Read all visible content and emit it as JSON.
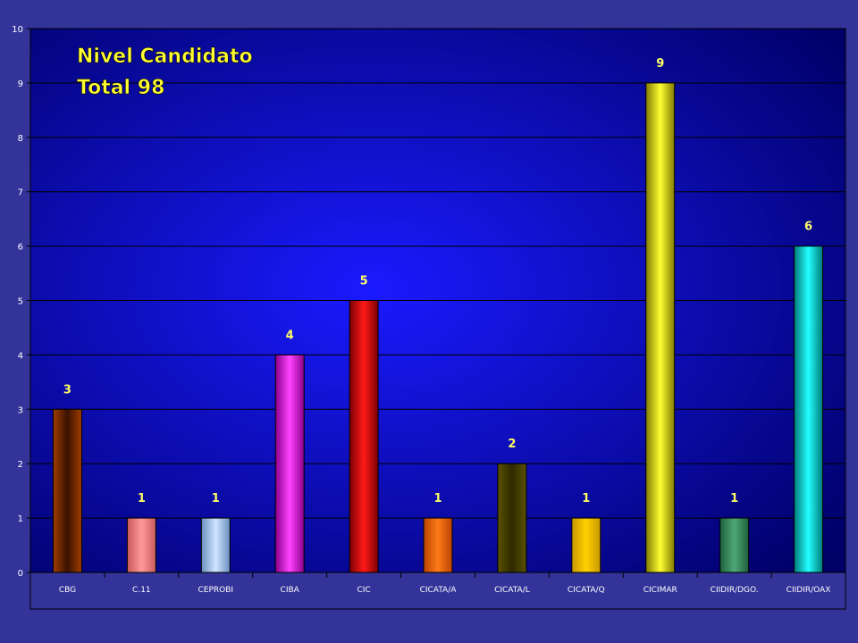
{
  "chart_data": {
    "type": "bar",
    "title": "Nivel Candidato",
    "subtitle": "Total 98",
    "categories": [
      "CBG",
      "C.11",
      "CEPROBI",
      "CIBA",
      "CIC",
      "CICATA/A",
      "CICATA/L",
      "CICATA/Q",
      "CICIMAR",
      "CIIDIR/DGO.",
      "CIIDIR/OAX"
    ],
    "values": [
      3,
      1,
      1,
      4,
      5,
      1,
      2,
      1,
      9,
      1,
      6
    ],
    "value_labels": [
      "3",
      "1",
      "1",
      "4",
      "5",
      "1",
      "2",
      "1",
      "9",
      "1",
      "6"
    ],
    "ylim": [
      0,
      10
    ],
    "y_ticks": [
      "0",
      "1",
      "2",
      "3",
      "4",
      "5",
      "6",
      "7",
      "8",
      "9",
      "10"
    ],
    "grid": true,
    "legend": "none",
    "colors": {
      "page_background": "#333399",
      "plot_center": "#1a1aff",
      "plot_edge": "#000066",
      "title_text": "#ffff33",
      "value_label_text": "#ffff66",
      "axis_text": "#ffffff",
      "grid_line": "#000000"
    },
    "bar_colors": [
      {
        "edge": "#a03c00",
        "mid": "#3a1200"
      },
      {
        "edge": "#c85a5a",
        "mid": "#ff9a9a"
      },
      {
        "edge": "#6a8fbf",
        "mid": "#cfe6ff"
      },
      {
        "edge": "#8a008a",
        "mid": "#ff44ff"
      },
      {
        "edge": "#7a0000",
        "mid": "#ff1a1a"
      },
      {
        "edge": "#b84400",
        "mid": "#ff7a1a"
      },
      {
        "edge": "#5a5200",
        "mid": "#2e2a00"
      },
      {
        "edge": "#c89800",
        "mid": "#ffd000"
      },
      {
        "edge": "#807a00",
        "mid": "#ffff33"
      },
      {
        "edge": "#1e5f3c",
        "mid": "#4fa878"
      },
      {
        "edge": "#007a7a",
        "mid": "#22ffff"
      }
    ]
  }
}
